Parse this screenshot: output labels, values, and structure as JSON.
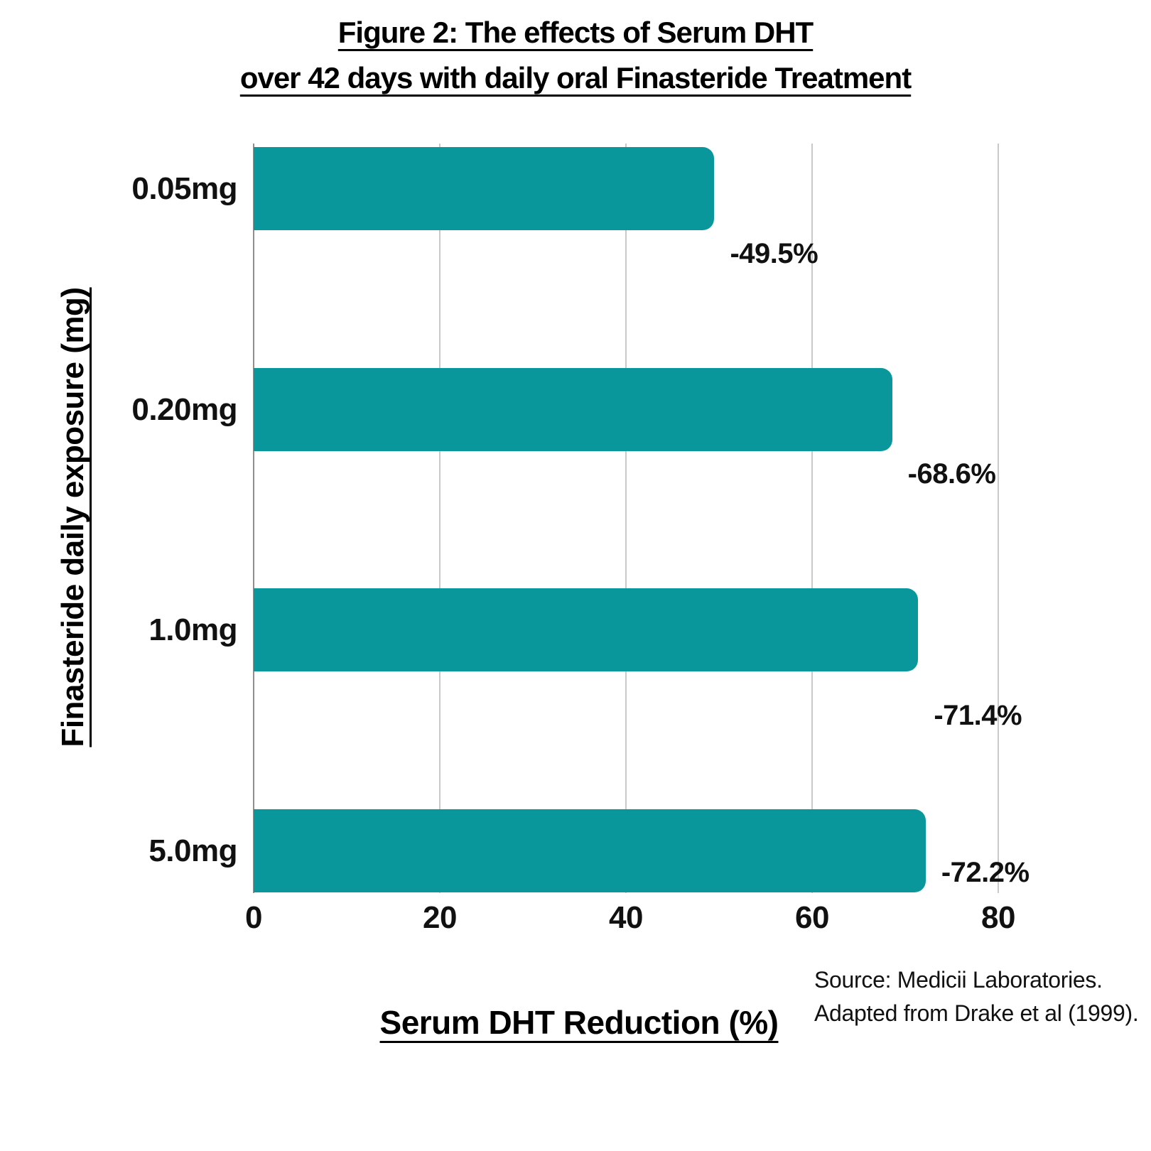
{
  "figure": {
    "title_line1": "Figure 2: The effects of Serum DHT",
    "title_line2": "over 42 days with daily oral Finasteride Treatment"
  },
  "axes": {
    "x_title": "Serum DHT Reduction (%)",
    "y_title": "Finasteride daily exposure (mg)"
  },
  "source": {
    "line1": "Source: Medicii Laboratories.",
    "line2": "Adapted from Drake et al (1999)."
  },
  "colors": {
    "bar": "#0a979c",
    "gridline": "#c9c9c9",
    "axis_line": "#8f8f8f",
    "text": "#111111",
    "background": "#ffffff"
  },
  "chart_data": {
    "type": "bar",
    "orientation": "horizontal",
    "title": "Figure 2: The effects of Serum DHT over 42 days with daily oral Finasteride Treatment",
    "categories": [
      "0.05mg",
      "0.20mg",
      "1.0mg",
      "5.0mg"
    ],
    "values": [
      49.5,
      68.6,
      71.4,
      72.2
    ],
    "value_labels": [
      "-49.5%",
      "-68.6%",
      "-71.4%",
      "-72.2%"
    ],
    "xlabel": "Serum DHT Reduction (%)",
    "ylabel": "Finasteride daily exposure (mg)",
    "x_ticks": [
      0,
      20,
      40,
      60,
      80
    ],
    "x_tick_labels": [
      "0",
      "20",
      "40",
      "60",
      "80"
    ],
    "xlim": [
      0,
      84
    ],
    "grid": true,
    "legend_position": "none",
    "bar_color": "#0a979c",
    "annotation": "Source: Medicii Laboratories. Adapted from Drake et al (1999)."
  }
}
